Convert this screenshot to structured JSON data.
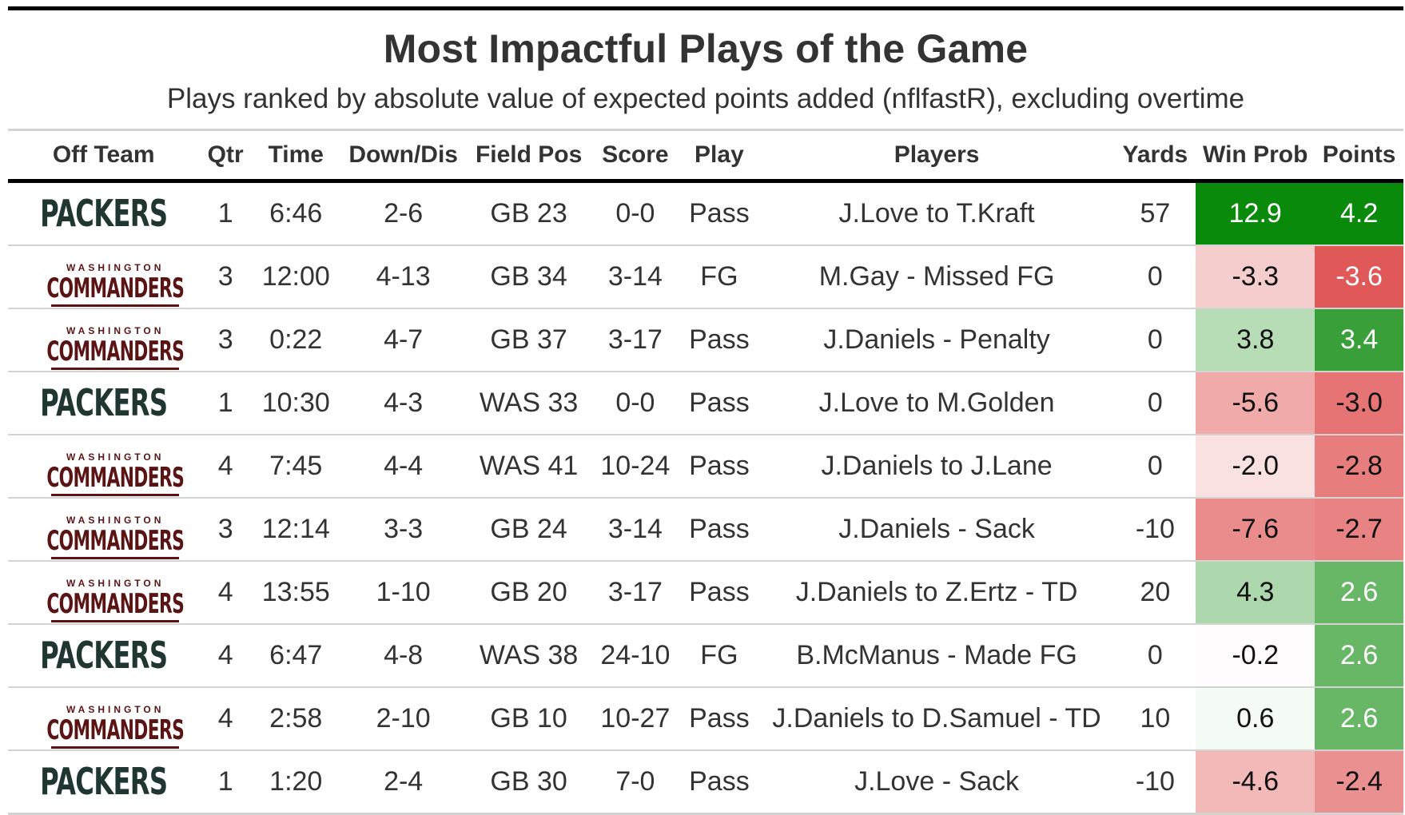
{
  "title": "Most Impactful Plays of the Game",
  "subtitle": "Plays ranked by absolute value of expected points added (nflfastR), excluding overtime",
  "columns": [
    "Off Team",
    "Qtr",
    "Time",
    "Down/Dis",
    "Field Pos",
    "Score",
    "Play",
    "Players",
    "Yards",
    "Win Prob",
    "Points"
  ],
  "teams": {
    "packers": {
      "wordmark": "PACKERS",
      "color": "#203731"
    },
    "commanders": {
      "top": "WASHINGTON",
      "wordmark": "COMMANDERS",
      "color": "#5a1414"
    }
  },
  "chart_data": {
    "type": "table",
    "title": "Most Impactful Plays of the Game",
    "subtitle": "Plays ranked by absolute value of expected points added (nflfastR), excluding overtime",
    "rows": [
      {
        "team": "packers",
        "qtr": "1",
        "time": "6:46",
        "down": "2-6",
        "fieldpos": "GB 23",
        "score": "0-0",
        "play": "Pass",
        "players": "J.Love to T.Kraft",
        "yards": "57",
        "wp": "12.9",
        "pts": "4.2"
      },
      {
        "team": "commanders",
        "qtr": "3",
        "time": "12:00",
        "down": "4-13",
        "fieldpos": "GB 34",
        "score": "3-14",
        "play": "FG",
        "players": "M.Gay - Missed FG",
        "yards": "0",
        "wp": "-3.3",
        "pts": "-3.6"
      },
      {
        "team": "commanders",
        "qtr": "3",
        "time": "0:22",
        "down": "4-7",
        "fieldpos": "GB 37",
        "score": "3-17",
        "play": "Pass",
        "players": "J.Daniels - Penalty",
        "yards": "0",
        "wp": "3.8",
        "pts": "3.4"
      },
      {
        "team": "packers",
        "qtr": "1",
        "time": "10:30",
        "down": "4-3",
        "fieldpos": "WAS 33",
        "score": "0-0",
        "play": "Pass",
        "players": "J.Love to M.Golden",
        "yards": "0",
        "wp": "-5.6",
        "pts": "-3.0"
      },
      {
        "team": "commanders",
        "qtr": "4",
        "time": "7:45",
        "down": "4-4",
        "fieldpos": "WAS 41",
        "score": "10-24",
        "play": "Pass",
        "players": "J.Daniels to J.Lane",
        "yards": "0",
        "wp": "-2.0",
        "pts": "-2.8"
      },
      {
        "team": "commanders",
        "qtr": "3",
        "time": "12:14",
        "down": "3-3",
        "fieldpos": "GB 24",
        "score": "3-14",
        "play": "Pass",
        "players": "J.Daniels - Sack",
        "yards": "-10",
        "wp": "-7.6",
        "pts": "-2.7"
      },
      {
        "team": "commanders",
        "qtr": "4",
        "time": "13:55",
        "down": "1-10",
        "fieldpos": "GB 20",
        "score": "3-17",
        "play": "Pass",
        "players": "J.Daniels to Z.Ertz - TD",
        "yards": "20",
        "wp": "4.3",
        "pts": "2.6"
      },
      {
        "team": "packers",
        "qtr": "4",
        "time": "6:47",
        "down": "4-8",
        "fieldpos": "WAS 38",
        "score": "24-10",
        "play": "FG",
        "players": "B.McManus - Made FG",
        "yards": "0",
        "wp": "-0.2",
        "pts": "2.6"
      },
      {
        "team": "commanders",
        "qtr": "4",
        "time": "2:58",
        "down": "2-10",
        "fieldpos": "GB 10",
        "score": "10-27",
        "play": "Pass",
        "players": "J.Daniels to D.Samuel - TD",
        "yards": "10",
        "wp": "0.6",
        "pts": "2.6"
      },
      {
        "team": "packers",
        "qtr": "1",
        "time": "1:20",
        "down": "2-4",
        "fieldpos": "GB 30",
        "score": "7-0",
        "play": "Pass",
        "players": "J.Love - Sack",
        "yards": "-10",
        "wp": "-4.6",
        "pts": "-2.4"
      }
    ],
    "wp_color_range": [
      -12.9,
      12.9
    ],
    "pts_color_range": [
      -4.2,
      4.2
    ],
    "colors": {
      "positive": "#0a8a0a",
      "negative": "#dc3c3c",
      "neutral": "#ffffff"
    }
  }
}
